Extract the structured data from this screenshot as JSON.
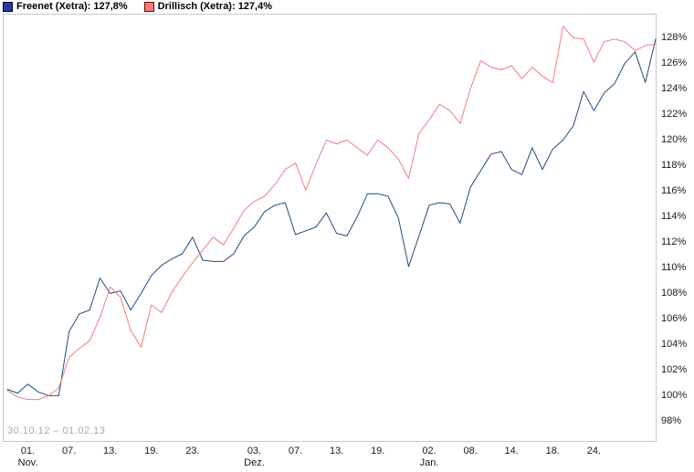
{
  "legend": [
    {
      "name": "Freenet (Xetra)",
      "label": "Freenet (Xetra): 127,8%",
      "swatch_color": "#233c9e",
      "swatch_border": "#000033"
    },
    {
      "name": "Drillisch (Xetra)",
      "label": "Drillisch (Xetra): 127,4%",
      "swatch_color": "#f07d7d",
      "swatch_border": "#7a0000"
    }
  ],
  "range_label": "30.10.12 – 01.02.13",
  "colors": {
    "freenet_line": "#1e4a82",
    "drillisch_line": "#f07d7d",
    "frame": "#c8c8c8",
    "axis_text": "#1a1a1a",
    "range_text": "#a9a9a9",
    "background": "#ffffff"
  },
  "chart_data": {
    "type": "line",
    "title": "",
    "xlabel": "",
    "ylabel": "",
    "grid": false,
    "legend_position": "top-left",
    "y_unit": "%",
    "ylim": [
      96.4,
      129.8
    ],
    "yticks": [
      98,
      100,
      102,
      104,
      106,
      108,
      110,
      112,
      114,
      116,
      118,
      120,
      122,
      124,
      126,
      128
    ],
    "x": [
      "30.10.12",
      "31.10.12",
      "01.11.12",
      "02.11.12",
      "05.11.12",
      "06.11.12",
      "07.11.12",
      "08.11.12",
      "09.11.12",
      "12.11.12",
      "13.11.12",
      "14.11.12",
      "15.11.12",
      "16.11.12",
      "19.11.12",
      "20.11.12",
      "21.11.12",
      "22.11.12",
      "23.11.12",
      "26.11.12",
      "27.11.12",
      "28.11.12",
      "29.11.12",
      "30.11.12",
      "03.12.12",
      "04.12.12",
      "05.12.12",
      "06.12.12",
      "07.12.12",
      "10.12.12",
      "11.12.12",
      "12.12.12",
      "13.12.12",
      "14.12.12",
      "17.12.12",
      "18.12.12",
      "19.12.12",
      "20.12.12",
      "21.12.12",
      "27.12.12",
      "28.12.12",
      "02.01.13",
      "03.01.13",
      "04.01.13",
      "07.01.13",
      "08.01.13",
      "09.01.13",
      "10.01.13",
      "11.01.13",
      "14.01.13",
      "15.01.13",
      "16.01.13",
      "17.01.13",
      "18.01.13",
      "21.01.13",
      "22.01.13",
      "23.01.13",
      "24.01.13",
      "25.01.13",
      "28.01.13",
      "29.01.13",
      "30.01.13",
      "31.01.13",
      "01.02.13"
    ],
    "xticks": [
      {
        "index": 2,
        "day": "01.",
        "month": "Nov."
      },
      {
        "index": 6,
        "day": "07."
      },
      {
        "index": 10,
        "day": "13."
      },
      {
        "index": 14,
        "day": "19."
      },
      {
        "index": 18,
        "day": "23."
      },
      {
        "index": 24,
        "day": "03.",
        "month": "Dez."
      },
      {
        "index": 28,
        "day": "07."
      },
      {
        "index": 32,
        "day": "13."
      },
      {
        "index": 36,
        "day": "19."
      },
      {
        "index": 41,
        "day": "02.",
        "month": "Jan."
      },
      {
        "index": 45,
        "day": "08."
      },
      {
        "index": 49,
        "day": "14."
      },
      {
        "index": 53,
        "day": "18."
      },
      {
        "index": 57,
        "day": "24."
      }
    ],
    "series": [
      {
        "name": "Freenet (Xetra)",
        "final_label": "127,8%",
        "color": "#1e4a82",
        "values": [
          100.4,
          100.1,
          100.8,
          100.2,
          99.9,
          99.9,
          104.9,
          106.3,
          106.6,
          109.1,
          107.9,
          108.1,
          106.6,
          107.9,
          109.3,
          110.1,
          110.6,
          111.0,
          112.3,
          110.5,
          110.4,
          110.4,
          111.0,
          112.4,
          113.1,
          114.3,
          114.8,
          115.0,
          112.5,
          112.8,
          113.1,
          114.2,
          112.6,
          112.4,
          113.9,
          115.7,
          115.7,
          115.5,
          113.8,
          110.0,
          112.4,
          114.8,
          115.0,
          114.9,
          113.4,
          116.2,
          117.5,
          118.8,
          119.0,
          117.6,
          117.2,
          119.3,
          117.6,
          119.2,
          119.9,
          121.0,
          123.7,
          122.2,
          123.6,
          124.3,
          125.9,
          126.8,
          124.4,
          127.8
        ]
      },
      {
        "name": "Drillisch (Xetra)",
        "final_label": "127,4%",
        "color": "#f07d7d",
        "values": [
          100.3,
          99.8,
          99.6,
          99.6,
          99.9,
          100.5,
          102.9,
          103.6,
          104.2,
          106.0,
          108.4,
          107.6,
          105.0,
          103.7,
          107.0,
          106.4,
          108.0,
          109.2,
          110.3,
          111.3,
          112.3,
          111.7,
          113.0,
          114.4,
          115.1,
          115.5,
          116.4,
          117.6,
          118.1,
          116.0,
          118.0,
          119.9,
          119.6,
          119.9,
          119.3,
          118.7,
          119.9,
          119.3,
          118.4,
          116.9,
          120.4,
          121.5,
          122.7,
          122.2,
          121.2,
          123.9,
          126.1,
          125.6,
          125.4,
          125.7,
          124.7,
          125.6,
          124.9,
          124.4,
          128.8,
          127.9,
          127.8,
          126.0,
          127.6,
          127.8,
          127.6,
          126.9,
          127.3,
          127.4
        ]
      }
    ]
  }
}
